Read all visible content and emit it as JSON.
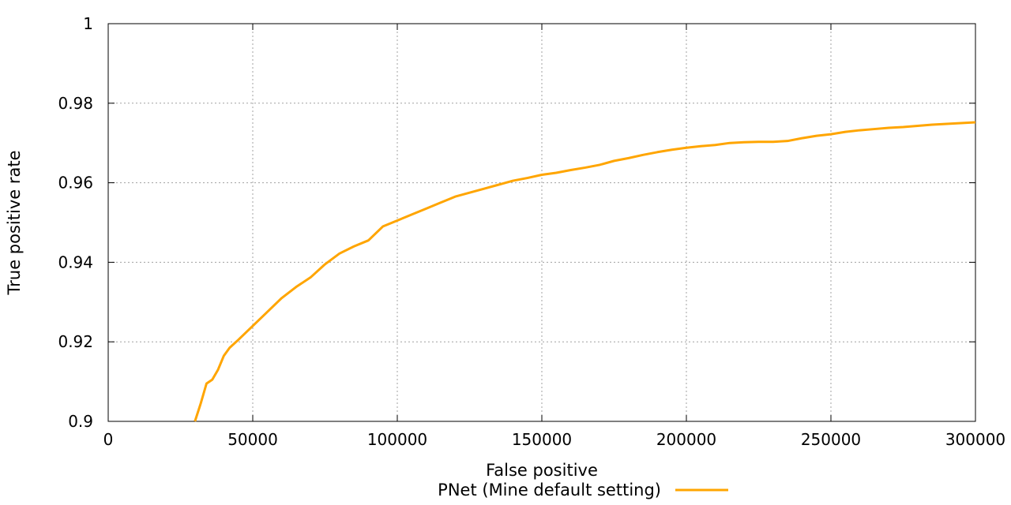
{
  "chart_data": {
    "type": "line",
    "xlabel": "False positive",
    "ylabel": "True positive rate",
    "xlim": [
      0,
      300000
    ],
    "ylim": [
      0.9,
      1.0
    ],
    "x_ticks": [
      "0",
      "50000",
      "100000",
      "150000",
      "200000",
      "250000",
      "300000"
    ],
    "y_ticks": [
      "0.9",
      "0.92",
      "0.94",
      "0.96",
      "0.98",
      "1"
    ],
    "grid": true,
    "legend_position": "bottom-center",
    "series": [
      {
        "name": "PNet (Mine default setting)",
        "color": "#ffa500",
        "x": [
          30000,
          32000,
          34000,
          36000,
          38000,
          40000,
          42000,
          45000,
          50000,
          55000,
          60000,
          65000,
          70000,
          75000,
          80000,
          85000,
          90000,
          95000,
          100000,
          105000,
          110000,
          115000,
          120000,
          125000,
          130000,
          135000,
          140000,
          145000,
          150000,
          155000,
          160000,
          165000,
          170000,
          175000,
          180000,
          185000,
          190000,
          195000,
          200000,
          205000,
          210000,
          215000,
          220000,
          225000,
          230000,
          235000,
          240000,
          245000,
          250000,
          255000,
          260000,
          265000,
          270000,
          275000,
          280000,
          285000,
          290000,
          295000,
          300000
        ],
        "y": [
          0.9,
          0.9045,
          0.9095,
          0.9105,
          0.913,
          0.9165,
          0.9185,
          0.9205,
          0.924,
          0.9275,
          0.931,
          0.9338,
          0.9362,
          0.9395,
          0.9422,
          0.944,
          0.9455,
          0.949,
          0.9505,
          0.952,
          0.9535,
          0.955,
          0.9565,
          0.9575,
          0.9585,
          0.9595,
          0.9605,
          0.9612,
          0.962,
          0.9625,
          0.9632,
          0.9638,
          0.9645,
          0.9655,
          0.9662,
          0.967,
          0.9677,
          0.9683,
          0.9688,
          0.9692,
          0.9695,
          0.97,
          0.9702,
          0.9703,
          0.9703,
          0.9705,
          0.9712,
          0.9718,
          0.9722,
          0.9728,
          0.9732,
          0.9735,
          0.9738,
          0.974,
          0.9743,
          0.9746,
          0.9748,
          0.975,
          0.9752
        ]
      }
    ]
  }
}
